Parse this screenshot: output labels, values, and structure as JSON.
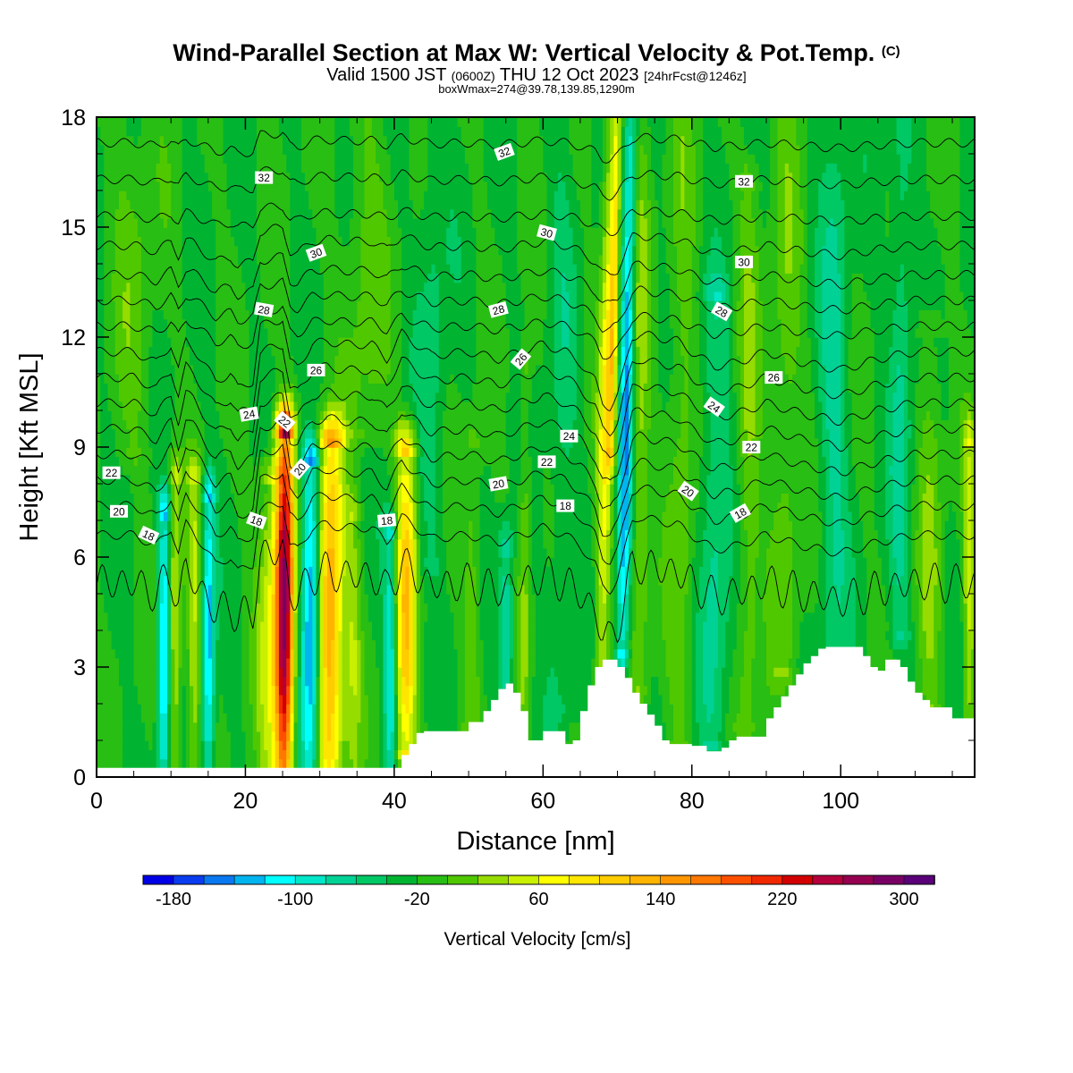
{
  "header": {
    "title_main": "Wind-Parallel Section at Max W: Vertical Velocity & Pot.Temp.",
    "title_copyright": "(C)",
    "valid_a": "Valid 1500 JST",
    "valid_b": "(0600Z)",
    "valid_c": "THU 12 Oct 2023",
    "valid_d": "[24hrFcst@1246z]",
    "box_info": "boxWmax=274@39.78,139.85,1290m"
  },
  "chart_data": {
    "type": "heatmap",
    "xlabel": "Distance [nm]",
    "ylabel": "Height [Kft MSL]",
    "xlim": [
      0,
      118
    ],
    "ylim": [
      0,
      18
    ],
    "x_ticks": [
      "0",
      "20",
      "40",
      "60",
      "80",
      "100"
    ],
    "x_tick_values": [
      0,
      20,
      40,
      60,
      80,
      100
    ],
    "y_ticks": [
      "0",
      "3",
      "6",
      "9",
      "12",
      "15",
      "18"
    ],
    "y_tick_values": [
      0,
      3,
      6,
      9,
      12,
      15,
      18
    ],
    "colorbar": {
      "title": "Vertical Velocity [cm/s]",
      "tick_labels": [
        "-180",
        "-100",
        "-20",
        "60",
        "140",
        "220",
        "300"
      ],
      "tick_values": [
        -180,
        -100,
        -20,
        60,
        140,
        220,
        300
      ],
      "levels": [
        -200,
        -180,
        -160,
        -140,
        -120,
        -100,
        -80,
        -60,
        -40,
        -20,
        0,
        20,
        40,
        60,
        80,
        100,
        120,
        140,
        160,
        180,
        200,
        220,
        240,
        260,
        280,
        300,
        320
      ],
      "colors": [
        "#0000e6",
        "#0a3cf0",
        "#0a78f0",
        "#00b4f0",
        "#00ffff",
        "#00e6c8",
        "#00d296",
        "#00c864",
        "#00b432",
        "#28be14",
        "#50c800",
        "#96dc00",
        "#c8f000",
        "#ffff00",
        "#ffe600",
        "#ffcc00",
        "#ffb400",
        "#ff9600",
        "#ff7800",
        "#ff5000",
        "#f02800",
        "#d20000",
        "#b4003c",
        "#960050",
        "#780064",
        "#5a0078"
      ]
    },
    "base_value": -20,
    "velocity_features": [
      {
        "x": 10.5,
        "w": 0.9,
        "ybot": 0.3,
        "ytop": 8.0,
        "amp": 70
      },
      {
        "x": 9.0,
        "w": 0.8,
        "ybot": 0.3,
        "ytop": 7.0,
        "amp": -110
      },
      {
        "x": 13.0,
        "w": 0.9,
        "ybot": 0.3,
        "ytop": 8.0,
        "amp": 60
      },
      {
        "x": 15.0,
        "w": 0.8,
        "ybot": 0.3,
        "ytop": 7.5,
        "amp": -110
      },
      {
        "x": 23.2,
        "w": 1.6,
        "ybot": 0.3,
        "ytop": 8.0,
        "amp": 70
      },
      {
        "x": 25.2,
        "w": 1.2,
        "ybot": 0.3,
        "ytop": 9.3,
        "amp": 300
      },
      {
        "x": 28.7,
        "w": 1.3,
        "ybot": 0.3,
        "ytop": 8.5,
        "amp": -140
      },
      {
        "x": 31.3,
        "w": 1.8,
        "ybot": 0.3,
        "ytop": 9.0,
        "amp": 170
      },
      {
        "x": 34.5,
        "w": 1.0,
        "ybot": 0.3,
        "ytop": 7.0,
        "amp": 50
      },
      {
        "x": 39.5,
        "w": 0.9,
        "ybot": 0.3,
        "ytop": 6.5,
        "amp": -90
      },
      {
        "x": 41.5,
        "w": 1.4,
        "ybot": 0.8,
        "ytop": 8.8,
        "amp": 130
      },
      {
        "x": 50.5,
        "w": 1.2,
        "ybot": 1.5,
        "ytop": 9.0,
        "amp": 35
      },
      {
        "x": 55.0,
        "w": 1.0,
        "ybot": 2.0,
        "ytop": 6.0,
        "amp": -70
      },
      {
        "x": 57.5,
        "w": 0.8,
        "ybot": 1.5,
        "ytop": 11.0,
        "amp": 40
      },
      {
        "x": 67.8,
        "w": 1.0,
        "ybot": 3.0,
        "ytop": 18.0,
        "amp": 90
      },
      {
        "x": 69.2,
        "w": 0.6,
        "ybot": 9.0,
        "ytop": 18.0,
        "amp": 100
      },
      {
        "x": 70.6,
        "w": 0.9,
        "ybot": 3.5,
        "ytop": 18.0,
        "amp": -120
      },
      {
        "x": 73.0,
        "w": 1.2,
        "ybot": 2.5,
        "ytop": 18.0,
        "amp": 45
      },
      {
        "x": 83.0,
        "w": 2.0,
        "ybot": 1.0,
        "ytop": 13.0,
        "amp": -50
      },
      {
        "x": 87.5,
        "w": 1.5,
        "ybot": 1.5,
        "ytop": 16.0,
        "amp": 40
      },
      {
        "x": 92.5,
        "w": 2.0,
        "ybot": 3.0,
        "ytop": 18.0,
        "amp": 35
      },
      {
        "x": 99.0,
        "w": 2.0,
        "ybot": 3.5,
        "ytop": 18.0,
        "amp": -45
      },
      {
        "x": 108.0,
        "w": 1.5,
        "ybot": 4.0,
        "ytop": 18.0,
        "amp": -45
      },
      {
        "x": 112.0,
        "w": 1.5,
        "ybot": 2.0,
        "ytop": 12.0,
        "amp": 40
      },
      {
        "x": 117.2,
        "w": 0.8,
        "ybot": 1.5,
        "ytop": 9.0,
        "amp": 70
      },
      {
        "x": 36.0,
        "w": 3.0,
        "ybot": 9.5,
        "ytop": 18.0,
        "amp": 30
      },
      {
        "x": 5.0,
        "w": 3.0,
        "ybot": 9.0,
        "ytop": 18.0,
        "amp": 25
      },
      {
        "x": 45.0,
        "w": 2.0,
        "ybot": 6.0,
        "ytop": 18.0,
        "amp": -30
      },
      {
        "x": 62.5,
        "w": 2.0,
        "ybot": 2.0,
        "ytop": 18.0,
        "amp": -25
      },
      {
        "x": 78.5,
        "w": 1.8,
        "ybot": 1.0,
        "ytop": 18.0,
        "amp": 35
      }
    ],
    "terrain": {
      "x": [
        0,
        40,
        41,
        42,
        43,
        44,
        50,
        52,
        53,
        54,
        55,
        56,
        57,
        58,
        59,
        60,
        62,
        63,
        64,
        65,
        66,
        67,
        68,
        69,
        70,
        71,
        72,
        73,
        74,
        75,
        76,
        77,
        78,
        80,
        82,
        83,
        84,
        85,
        86,
        90,
        91,
        92,
        93,
        94,
        95,
        96,
        97,
        98,
        100,
        102,
        103,
        104,
        105,
        106,
        107,
        108,
        109,
        110,
        111,
        112,
        114,
        115,
        118
      ],
      "y": [
        0.25,
        0.25,
        0.6,
        0.9,
        1.2,
        1.25,
        1.5,
        1.8,
        2.1,
        2.4,
        2.55,
        2.3,
        1.8,
        1.0,
        1.0,
        1.25,
        1.25,
        0.9,
        1.0,
        1.8,
        2.5,
        3.0,
        3.2,
        3.2,
        3.0,
        2.7,
        2.3,
        2.0,
        1.7,
        1.4,
        1.0,
        0.9,
        0.9,
        0.85,
        0.7,
        0.7,
        0.8,
        1.0,
        1.1,
        1.6,
        1.9,
        2.2,
        2.5,
        2.8,
        3.1,
        3.3,
        3.5,
        3.55,
        3.55,
        3.55,
        3.3,
        3.0,
        2.9,
        3.2,
        3.2,
        3.0,
        2.6,
        2.3,
        2.1,
        1.9,
        1.9,
        1.6,
        1.6
      ]
    },
    "theta_contours": {
      "levels": [
        18,
        19,
        20,
        21,
        22,
        23,
        24,
        25,
        26,
        27,
        28,
        29,
        30,
        31,
        32,
        33
      ],
      "x": [
        0,
        5,
        8,
        10,
        11,
        12,
        13,
        16,
        18,
        19,
        21,
        22,
        25,
        26,
        27,
        29,
        31,
        33,
        37,
        39,
        41,
        43,
        45,
        50,
        54,
        57,
        60,
        63,
        65,
        67,
        68,
        69,
        70,
        71,
        72,
        73,
        75,
        78,
        80,
        83,
        86,
        90,
        95,
        100,
        105,
        110,
        115,
        118
      ],
      "disp": [
        0.0,
        0.0,
        -0.3,
        0.2,
        -0.5,
        0.3,
        0.1,
        -0.8,
        -0.6,
        -1.0,
        -0.8,
        0.7,
        0.9,
        -0.3,
        -0.4,
        0.2,
        0.3,
        0.2,
        0.2,
        -0.2,
        0.5,
        0.2,
        -0.1,
        0.0,
        -0.2,
        0.0,
        0.2,
        0.0,
        -0.3,
        -0.8,
        -1.4,
        -1.5,
        -1.2,
        -0.4,
        0.4,
        0.5,
        0.4,
        0.3,
        0.0,
        -0.4,
        -0.3,
        0.0,
        -0.3,
        -0.5,
        -0.2,
        0.0,
        0.0,
        0.0
      ],
      "level_height": {
        "18": 5.5,
        "19": 6.6,
        "20": 7.4,
        "21": 8.1,
        "22": 8.8,
        "23": 9.5,
        "24": 10.2,
        "25": 10.9,
        "26": 11.6,
        "27": 12.3,
        "28": 13.0,
        "29": 13.7,
        "30": 14.5,
        "31": 15.3,
        "32": 16.3,
        "33": 17.3
      },
      "labels": [
        {
          "text": "32",
          "x": 22.5,
          "y": 16.35,
          "rot": 0
        },
        {
          "text": "32",
          "x": 54.8,
          "y": 17.05,
          "rot": -20
        },
        {
          "text": "32",
          "x": 87.0,
          "y": 16.25,
          "rot": 0
        },
        {
          "text": "30",
          "x": 29.5,
          "y": 14.3,
          "rot": -20
        },
        {
          "text": "30",
          "x": 60.5,
          "y": 14.85,
          "rot": 15
        },
        {
          "text": "30",
          "x": 87.0,
          "y": 14.05,
          "rot": 0
        },
        {
          "text": "28",
          "x": 22.5,
          "y": 12.75,
          "rot": 10
        },
        {
          "text": "28",
          "x": 54.0,
          "y": 12.75,
          "rot": -15
        },
        {
          "text": "28",
          "x": 84.0,
          "y": 12.7,
          "rot": 30
        },
        {
          "text": "26",
          "x": 29.5,
          "y": 11.1,
          "rot": 0
        },
        {
          "text": "26",
          "x": 57.0,
          "y": 11.4,
          "rot": -50
        },
        {
          "text": "26",
          "x": 91.0,
          "y": 10.9,
          "rot": 0
        },
        {
          "text": "24",
          "x": 20.5,
          "y": 9.9,
          "rot": -10
        },
        {
          "text": "24",
          "x": 63.5,
          "y": 9.3,
          "rot": 0
        },
        {
          "text": "24",
          "x": 83.0,
          "y": 10.1,
          "rot": 35
        },
        {
          "text": "22",
          "x": 2.0,
          "y": 8.3,
          "rot": 0
        },
        {
          "text": "22",
          "x": 25.3,
          "y": 9.7,
          "rot": 40
        },
        {
          "text": "22",
          "x": 60.5,
          "y": 8.6,
          "rot": 0
        },
        {
          "text": "22",
          "x": 88.0,
          "y": 9.0,
          "rot": 0
        },
        {
          "text": "20",
          "x": 3.0,
          "y": 7.25,
          "rot": 0
        },
        {
          "text": "20",
          "x": 27.3,
          "y": 8.4,
          "rot": -50
        },
        {
          "text": "20",
          "x": 54.0,
          "y": 8.0,
          "rot": -10
        },
        {
          "text": "20",
          "x": 79.5,
          "y": 7.8,
          "rot": 35
        },
        {
          "text": "18",
          "x": 7.0,
          "y": 6.6,
          "rot": 25
        },
        {
          "text": "18",
          "x": 21.5,
          "y": 7.0,
          "rot": 20
        },
        {
          "text": "18",
          "x": 39.0,
          "y": 7.0,
          "rot": -5
        },
        {
          "text": "18",
          "x": 63.0,
          "y": 7.4,
          "rot": 0
        },
        {
          "text": "18",
          "x": 86.5,
          "y": 7.2,
          "rot": -30
        }
      ]
    }
  }
}
